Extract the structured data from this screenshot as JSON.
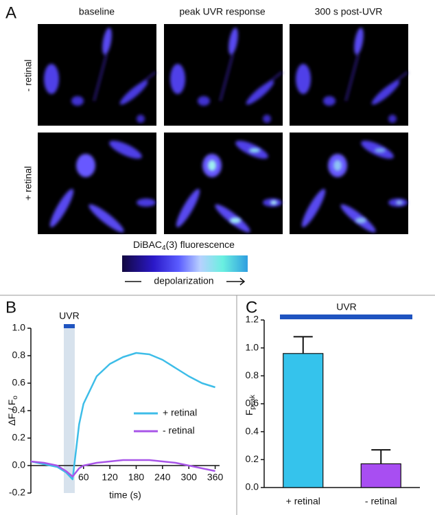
{
  "panel_a": {
    "label": "A",
    "columns": [
      "baseline",
      "peak UVR response",
      "300 s post-UVR"
    ],
    "rows": [
      "- retinal",
      "+ retinal"
    ],
    "colorbar": {
      "title": [
        "DiBAC",
        "4",
        "(3) fluorescence"
      ],
      "caption": "depolarization"
    }
  },
  "chart_data": [
    {
      "type": "line",
      "label": "B",
      "annotation": "UVR",
      "shaded_span": [
        15,
        40
      ],
      "ylabel": "ΔF / F",
      "ylabel_sub": "o",
      "xlabel": "time (s)",
      "x": [
        -60,
        -30,
        0,
        20,
        35,
        50,
        60,
        90,
        120,
        150,
        180,
        210,
        240,
        270,
        300,
        330,
        360
      ],
      "series": [
        {
          "name": "+ retinal",
          "color": "#3dbde8",
          "values": [
            0.03,
            0.01,
            -0.01,
            -0.05,
            -0.1,
            0.3,
            0.45,
            0.65,
            0.74,
            0.79,
            0.82,
            0.81,
            0.77,
            0.71,
            0.65,
            0.6,
            0.57
          ]
        },
        {
          "name": "- retinal",
          "color": "#a855e8",
          "values": [
            0.03,
            0.02,
            0.0,
            -0.04,
            -0.08,
            -0.02,
            0.0,
            0.02,
            0.03,
            0.04,
            0.04,
            0.04,
            0.03,
            0.02,
            0.0,
            -0.02,
            -0.04
          ]
        }
      ],
      "xlim": [
        -60,
        370
      ],
      "xticks": [
        60,
        120,
        180,
        240,
        300,
        360
      ],
      "ylim": [
        -0.2,
        1.0
      ],
      "yticks": [
        -0.2,
        {
          "value": 0,
          "label": "0.0"
        },
        0.2,
        0.4,
        0.6,
        0.8,
        {
          "value": 1,
          "label": "1.0"
        }
      ],
      "legend": "right"
    },
    {
      "type": "bar",
      "label": "C",
      "annotation": "UVR",
      "ylabel": "F",
      "ylabel_sub": "peak",
      "categories": [
        "+ retinal",
        "- retinal"
      ],
      "values": [
        0.96,
        0.17
      ],
      "errors": [
        0.12,
        0.1
      ],
      "colors": [
        "#35c3ec",
        "#a84ef2"
      ],
      "ylim": [
        0,
        1.2
      ],
      "yticks": [
        {
          "value": 0,
          "label": "0.0"
        },
        0.2,
        0.4,
        0.6,
        0.8,
        {
          "value": 1,
          "label": "1.0"
        },
        1.2
      ]
    }
  ]
}
